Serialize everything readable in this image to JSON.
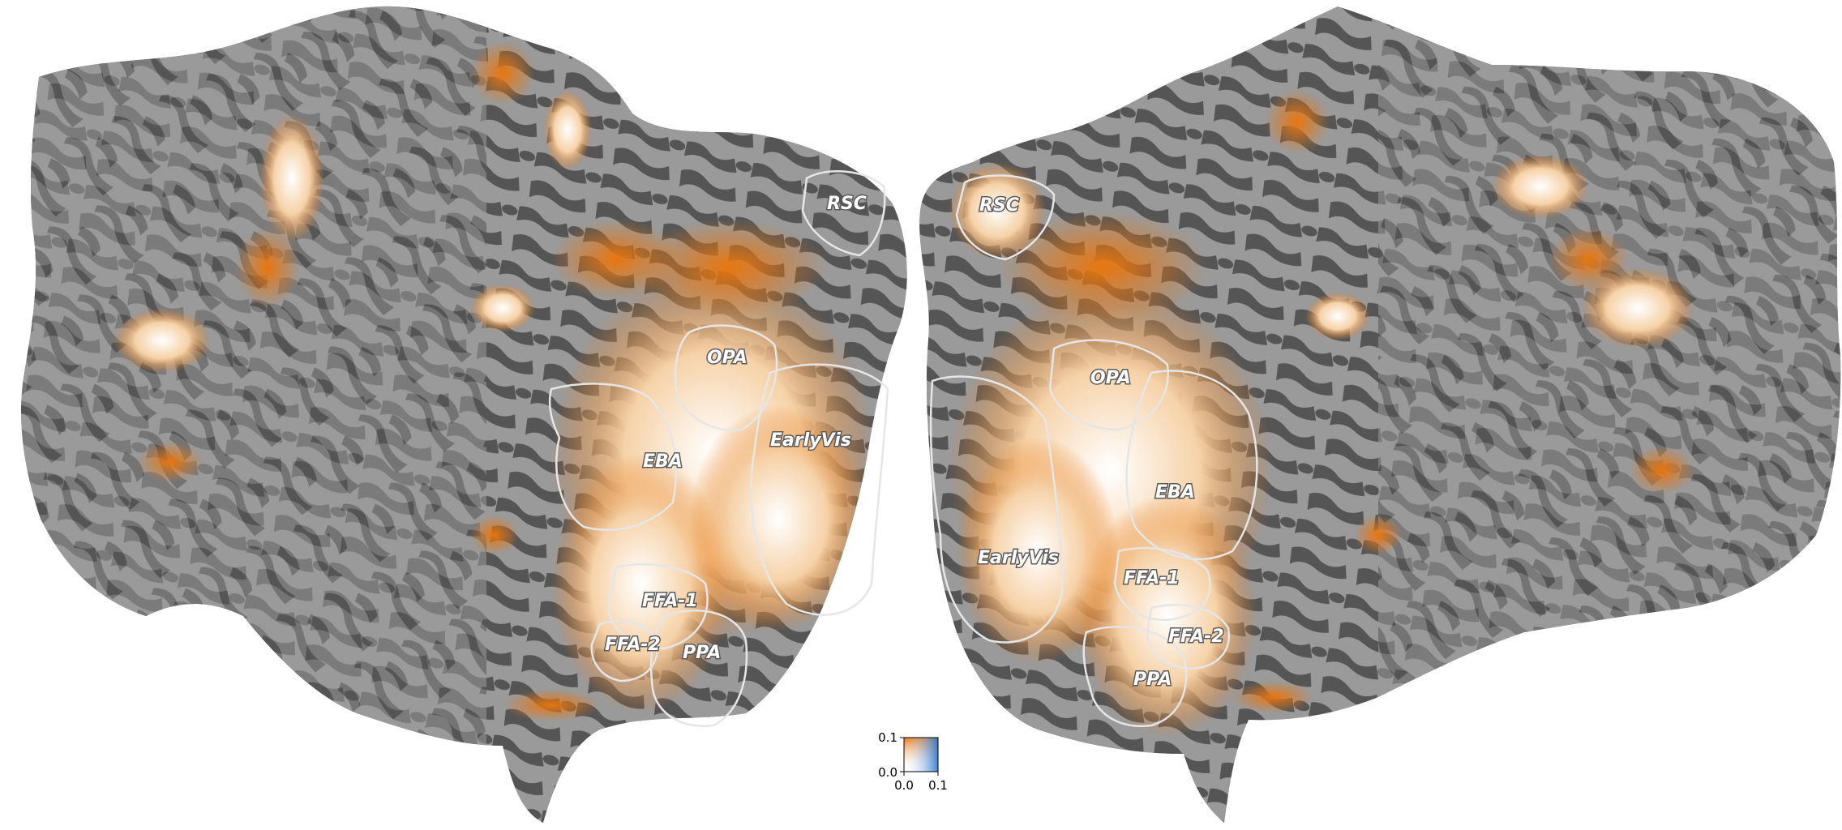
{
  "figure": {
    "hemispheres": [
      {
        "side": "left",
        "rois": [
          {
            "id": "rsc",
            "label": "RSC"
          },
          {
            "id": "opa",
            "label": "OPA"
          },
          {
            "id": "earlyvis",
            "label": "EarlyVis"
          },
          {
            "id": "eba",
            "label": "EBA"
          },
          {
            "id": "ffa1",
            "label": "FFA-1"
          },
          {
            "id": "ffa2",
            "label": "FFA-2"
          },
          {
            "id": "ppa",
            "label": "PPA"
          }
        ]
      },
      {
        "side": "right",
        "rois": [
          {
            "id": "rsc",
            "label": "RSC"
          },
          {
            "id": "opa",
            "label": "OPA"
          },
          {
            "id": "eba",
            "label": "EBA"
          },
          {
            "id": "earlyvis",
            "label": "EarlyVis"
          },
          {
            "id": "ffa1",
            "label": "FFA-1"
          },
          {
            "id": "ffa2",
            "label": "FFA-2"
          },
          {
            "id": "ppa",
            "label": "PPA"
          }
        ]
      }
    ],
    "colorbar": {
      "y_ticks": [
        "0.0",
        "0.1"
      ],
      "x_ticks": [
        "0.0",
        "0.1"
      ],
      "colors": {
        "orange": "#e8760f",
        "blue": "#1f6fd0",
        "white": "#ffffff"
      }
    },
    "colors": {
      "sulcus": "#555555",
      "gyrus": "#9a9a9a",
      "activation": "#e8760f",
      "activation_white": "#ffffff",
      "roi_outline": "#e6e6e6"
    }
  }
}
